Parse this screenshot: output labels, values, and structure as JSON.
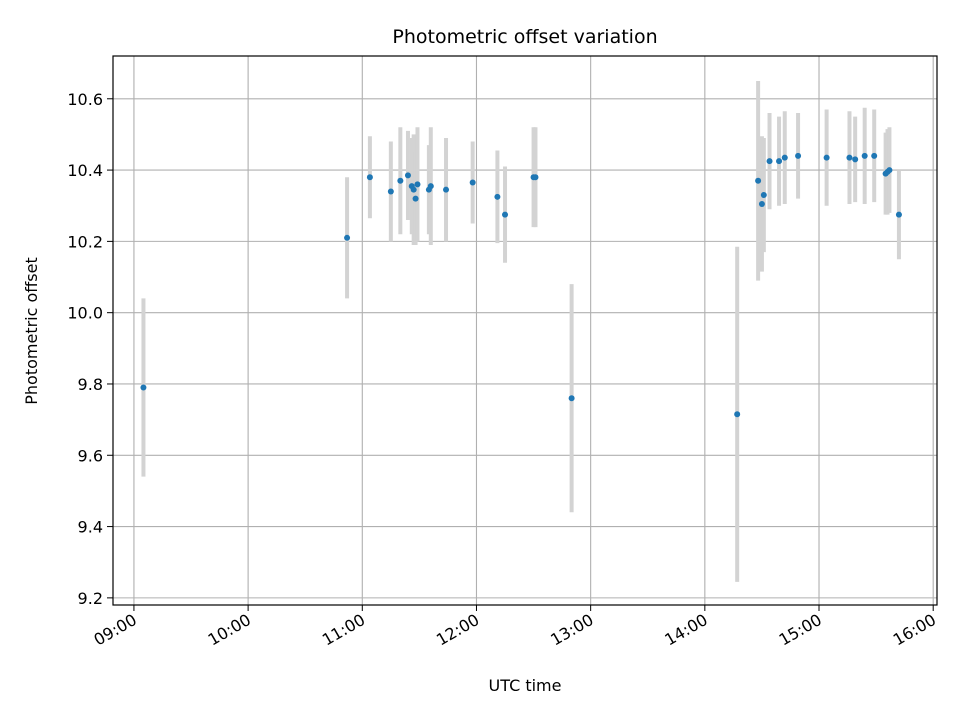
{
  "chart_data": {
    "type": "scatter",
    "title": "Photometric offset variation",
    "xlabel": "UTC time",
    "ylabel": "Photometric offset",
    "x_tick_labels": [
      "09:00",
      "10:00",
      "11:00",
      "12:00",
      "13:00",
      "14:00",
      "15:00",
      "16:00"
    ],
    "y_tick_labels": [
      "9.2",
      "9.4",
      "9.6",
      "9.8",
      "10.0",
      "10.2",
      "10.4",
      "10.6"
    ],
    "y_ticks": [
      9.2,
      9.4,
      9.6,
      9.8,
      10.0,
      10.2,
      10.4,
      10.6
    ],
    "xlim": [
      "08:49",
      "16:02"
    ],
    "ylim": [
      9.18,
      10.72
    ],
    "grid": true,
    "colors": {
      "points": "#1f77b4",
      "error_bars": "#d3d3d3",
      "grid": "#b0b0b0"
    },
    "series": [
      {
        "points": [
          {
            "x": "09:05",
            "y": 9.79,
            "err": 0.25
          },
          {
            "x": "10:52",
            "y": 10.21,
            "err": 0.17
          },
          {
            "x": "11:04",
            "y": 10.38,
            "err": 0.115
          },
          {
            "x": "11:15",
            "y": 10.34,
            "err": 0.14
          },
          {
            "x": "11:20",
            "y": 10.37,
            "err": 0.15
          },
          {
            "x": "11:24",
            "y": 10.385,
            "err": 0.125
          },
          {
            "x": "11:26",
            "y": 10.355,
            "err": 0.135
          },
          {
            "x": "11:27",
            "y": 10.345,
            "err": 0.155
          },
          {
            "x": "11:28",
            "y": 10.32,
            "err": 0.13
          },
          {
            "x": "11:29",
            "y": 10.36,
            "err": 0.16
          },
          {
            "x": "11:35",
            "y": 10.345,
            "err": 0.125
          },
          {
            "x": "11:36",
            "y": 10.355,
            "err": 0.165
          },
          {
            "x": "11:44",
            "y": 10.345,
            "err": 0.145
          },
          {
            "x": "11:58",
            "y": 10.365,
            "err": 0.115
          },
          {
            "x": "12:11",
            "y": 10.325,
            "err": 0.13
          },
          {
            "x": "12:15",
            "y": 10.275,
            "err": 0.135
          },
          {
            "x": "12:30",
            "y": 10.38,
            "err": 0.14
          },
          {
            "x": "12:31",
            "y": 10.38,
            "err": 0.14
          },
          {
            "x": "12:50",
            "y": 9.76,
            "err": 0.32
          },
          {
            "x": "14:17",
            "y": 9.715,
            "err": 0.47
          },
          {
            "x": "14:28",
            "y": 10.37,
            "err": 0.28
          },
          {
            "x": "14:30",
            "y": 10.305,
            "err": 0.19
          },
          {
            "x": "14:31",
            "y": 10.33,
            "err": 0.16
          },
          {
            "x": "14:34",
            "y": 10.425,
            "err": 0.135
          },
          {
            "x": "14:39",
            "y": 10.425,
            "err": 0.125
          },
          {
            "x": "14:42",
            "y": 10.435,
            "err": 0.13
          },
          {
            "x": "14:49",
            "y": 10.44,
            "err": 0.12
          },
          {
            "x": "15:04",
            "y": 10.435,
            "err": 0.135
          },
          {
            "x": "15:16",
            "y": 10.435,
            "err": 0.13
          },
          {
            "x": "15:19",
            "y": 10.43,
            "err": 0.12
          },
          {
            "x": "15:24",
            "y": 10.44,
            "err": 0.135
          },
          {
            "x": "15:29",
            "y": 10.44,
            "err": 0.13
          },
          {
            "x": "15:35",
            "y": 10.39,
            "err": 0.115
          },
          {
            "x": "15:36",
            "y": 10.395,
            "err": 0.12
          },
          {
            "x": "15:37",
            "y": 10.4,
            "err": 0.12
          },
          {
            "x": "15:42",
            "y": 10.275,
            "err": 0.125
          }
        ]
      }
    ]
  }
}
